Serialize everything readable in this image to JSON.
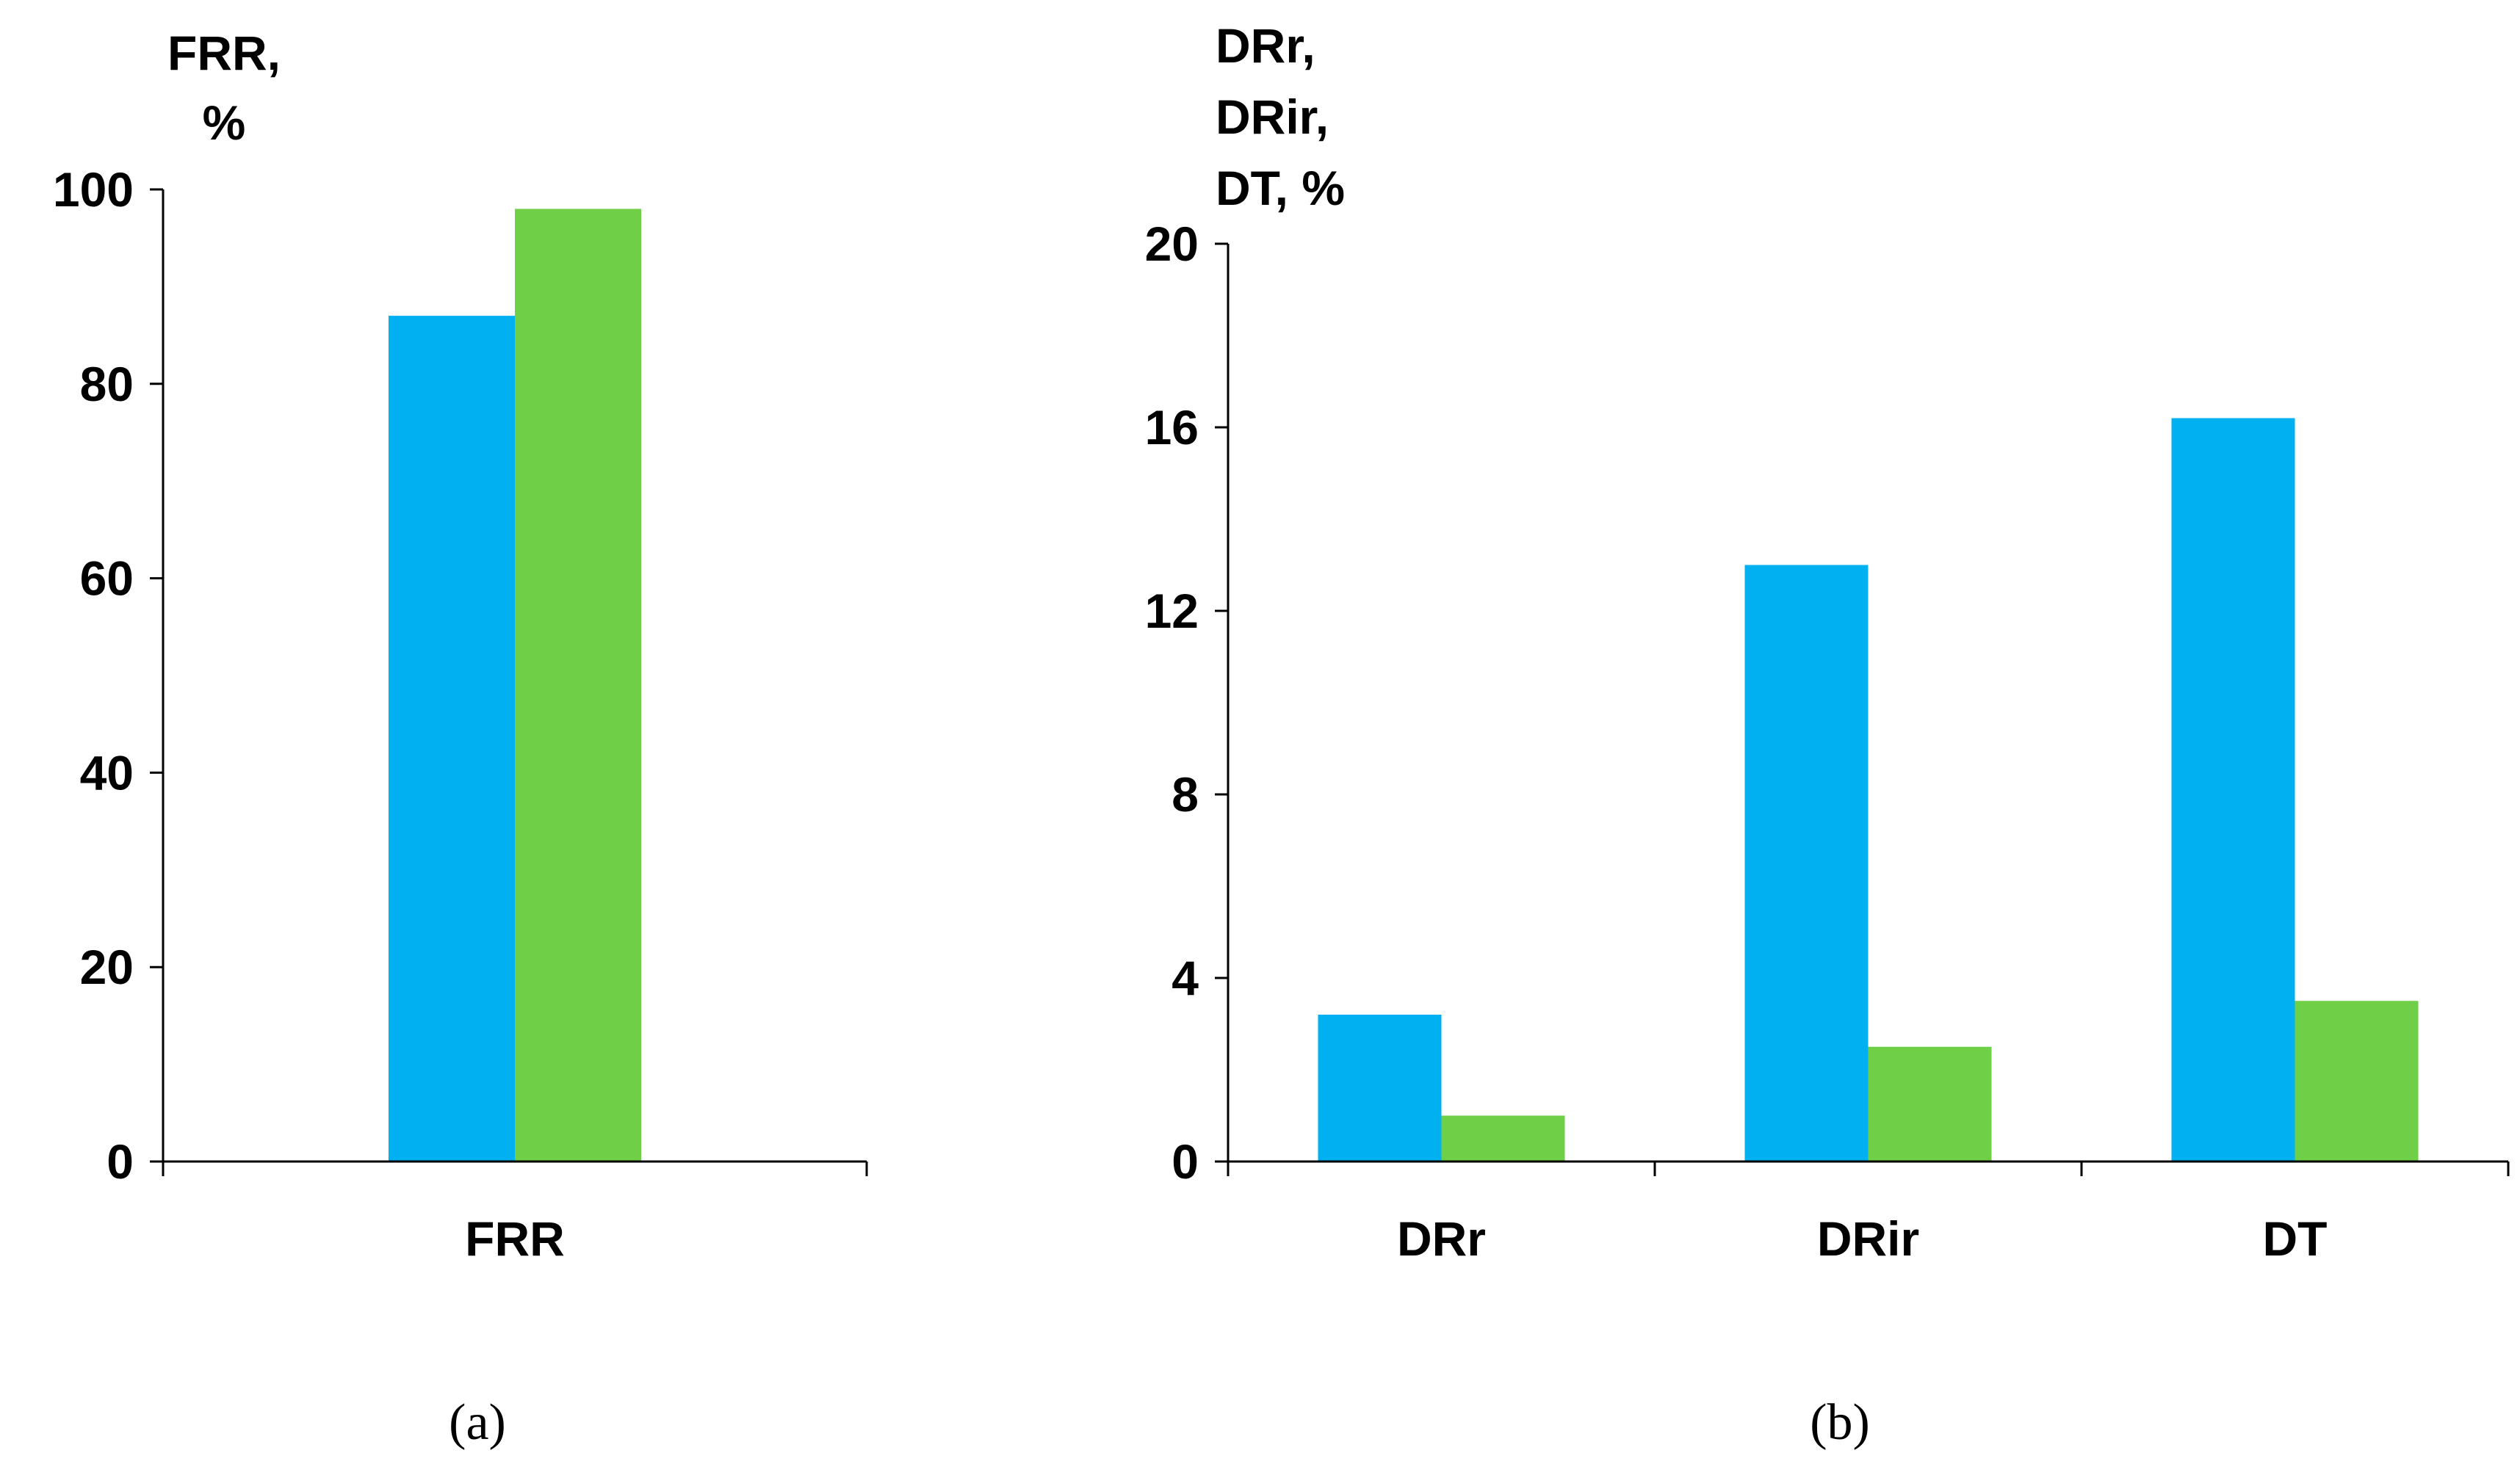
{
  "colors": {
    "series1": "#00b0f0",
    "series2": "#6fd047",
    "axis": "#000000"
  },
  "chart_data": [
    {
      "type": "bar",
      "panel_label": "(a)",
      "ylabel_lines": [
        "FRR,",
        "%"
      ],
      "categories": [
        "FRR"
      ],
      "series": [
        {
          "values": [
            87
          ]
        },
        {
          "values": [
            98
          ]
        }
      ],
      "ylim": [
        0,
        100
      ],
      "yticks": [
        0,
        20,
        40,
        60,
        80,
        100
      ],
      "grid": false,
      "legend": "none"
    },
    {
      "type": "bar",
      "panel_label": "(b)",
      "ylabel_lines": [
        "DRr,",
        "DRir,",
        "DT, %"
      ],
      "categories": [
        "DRr",
        "DRir",
        "DT"
      ],
      "series": [
        {
          "values": [
            3.2,
            13,
            16.2
          ]
        },
        {
          "values": [
            1,
            2.5,
            3.5
          ]
        }
      ],
      "ylim": [
        0,
        20
      ],
      "yticks": [
        0,
        4,
        8,
        12,
        16,
        20
      ],
      "grid": false,
      "legend": "none"
    }
  ]
}
